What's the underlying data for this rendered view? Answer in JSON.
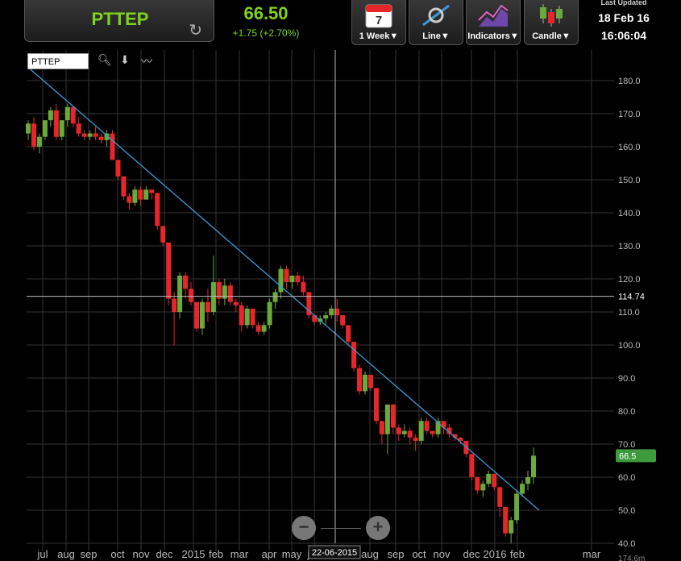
{
  "header": {
    "symbol": "PTTEP",
    "price": "66.50",
    "change": "+1.75 (+2.70%)",
    "interval_label": "1 Week▼",
    "calendar_day": "7",
    "line_label": "Line▼",
    "indicators_label": "Indicators▼",
    "candle_label": "Candle▼",
    "last_updated_label": "Last Updated",
    "date": "18 Feb 16",
    "time": "16:06:04"
  },
  "toolbar": {
    "symbol_input": "PTTEP"
  },
  "colors": {
    "up": "#6aaa3a",
    "down": "#e8262a",
    "trendline": "#3a9ad9",
    "accent": "#7ed321"
  },
  "chart_data": {
    "type": "candlestick",
    "y_ticks": [
      "180.0",
      "170.0",
      "160.0",
      "150.0",
      "140.0",
      "130.0",
      "120.0",
      "110.0",
      "100.0",
      "90.0",
      "80.0",
      "70.0",
      "60.0",
      "50.0",
      "40.0"
    ],
    "ylim": [
      40,
      180
    ],
    "x_ticks": [
      "jul",
      "aug",
      "sep",
      "oct",
      "nov",
      "dec",
      "2015",
      "feb",
      "mar",
      "apr",
      "may",
      "jun",
      "aug",
      "sep",
      "oct",
      "nov",
      "dec",
      "2016",
      "feb",
      "mar"
    ],
    "crosshair": {
      "y_value": "114.74",
      "x_label": "22-06-2015"
    },
    "current_value_label": "66.5",
    "extra_label": "174.6m",
    "candles": [
      [
        164,
        168,
        162,
        167
      ],
      [
        167,
        169,
        159,
        160
      ],
      [
        160,
        164,
        158,
        163
      ],
      [
        163,
        168,
        162,
        168
      ],
      [
        168,
        172,
        166,
        171
      ],
      [
        171,
        173,
        162,
        163
      ],
      [
        163,
        168,
        162,
        168
      ],
      [
        168,
        173,
        166,
        172
      ],
      [
        172,
        172,
        166,
        167
      ],
      [
        167,
        169,
        163,
        164
      ],
      [
        164,
        165,
        162,
        163
      ],
      [
        163,
        165,
        162,
        164
      ],
      [
        164,
        166,
        162,
        163
      ],
      [
        163,
        164,
        161,
        162
      ],
      [
        162,
        165,
        160,
        164
      ],
      [
        164,
        165,
        156,
        156
      ],
      [
        156,
        156,
        150,
        151
      ],
      [
        151,
        151,
        144,
        145
      ],
      [
        145,
        146,
        141,
        143
      ],
      [
        143,
        148,
        142,
        147
      ],
      [
        147,
        148,
        142,
        144
      ],
      [
        144,
        148,
        144,
        147
      ],
      [
        147,
        147,
        144,
        146
      ],
      [
        146,
        146,
        135,
        136
      ],
      [
        136,
        136,
        130,
        131
      ],
      [
        131,
        131,
        112,
        114
      ],
      [
        114,
        116,
        100,
        110
      ],
      [
        110,
        122,
        108,
        121
      ],
      [
        121,
        122,
        114,
        117
      ],
      [
        117,
        119,
        112,
        113
      ],
      [
        113,
        113,
        104,
        105
      ],
      [
        105,
        114,
        103,
        113
      ],
      [
        113,
        117,
        107,
        110
      ],
      [
        110,
        127,
        109,
        119
      ],
      [
        119,
        120,
        112,
        114
      ],
      [
        114,
        120,
        112,
        118
      ],
      [
        118,
        119,
        112,
        113
      ],
      [
        113,
        114,
        110,
        112
      ],
      [
        112,
        113,
        104,
        106
      ],
      [
        106,
        112,
        105,
        111
      ],
      [
        111,
        111,
        105,
        106
      ],
      [
        106,
        107,
        103,
        104
      ],
      [
        104,
        107,
        103,
        106
      ],
      [
        106,
        114,
        105,
        113
      ],
      [
        113,
        117,
        111,
        116
      ],
      [
        116,
        124,
        114,
        123
      ],
      [
        123,
        124,
        117,
        119
      ],
      [
        119,
        121,
        117,
        121
      ],
      [
        121,
        122,
        118,
        119
      ],
      [
        119,
        121,
        115,
        116
      ],
      [
        116,
        116,
        108,
        109
      ],
      [
        109,
        109,
        106,
        107
      ],
      [
        107,
        109,
        106,
        108
      ],
      [
        108,
        110,
        106,
        109
      ],
      [
        109,
        112,
        108,
        111
      ],
      [
        111,
        114,
        107,
        109
      ],
      [
        109,
        109,
        105,
        106
      ],
      [
        106,
        106,
        100,
        101
      ],
      [
        101,
        101,
        92,
        93
      ],
      [
        93,
        94,
        85,
        86
      ],
      [
        86,
        92,
        85,
        91
      ],
      [
        91,
        91,
        86,
        87
      ],
      [
        87,
        87,
        76,
        77
      ],
      [
        77,
        77,
        70,
        73
      ],
      [
        73,
        82,
        67,
        82
      ],
      [
        82,
        82,
        73,
        75
      ],
      [
        75,
        76,
        71,
        73
      ],
      [
        73,
        76,
        72,
        74
      ],
      [
        74,
        75,
        70,
        72
      ],
      [
        72,
        73,
        68,
        71
      ],
      [
        71,
        78,
        70,
        77
      ],
      [
        77,
        78,
        73,
        74
      ],
      [
        74,
        74,
        72,
        73
      ],
      [
        73,
        78,
        72,
        77
      ],
      [
        77,
        77,
        73,
        75
      ],
      [
        75,
        76,
        72,
        73
      ],
      [
        73,
        73,
        71,
        72
      ],
      [
        72,
        72,
        70,
        71
      ],
      [
        71,
        71,
        66,
        67
      ],
      [
        67,
        67,
        59,
        60
      ],
      [
        60,
        60,
        55,
        56
      ],
      [
        56,
        59,
        54,
        58
      ],
      [
        58,
        62,
        57,
        61
      ],
      [
        61,
        61,
        56,
        57
      ],
      [
        57,
        57,
        48,
        51
      ],
      [
        51,
        51,
        42,
        43
      ],
      [
        43,
        48,
        40,
        47
      ],
      [
        47,
        56,
        46,
        55
      ],
      [
        55,
        59,
        54,
        58
      ],
      [
        58,
        62,
        56,
        60
      ],
      [
        60,
        69,
        58,
        66.5
      ]
    ],
    "trendline": {
      "start": [
        0,
        184
      ],
      "end": [
        91,
        50
      ]
    },
    "grid": true
  }
}
